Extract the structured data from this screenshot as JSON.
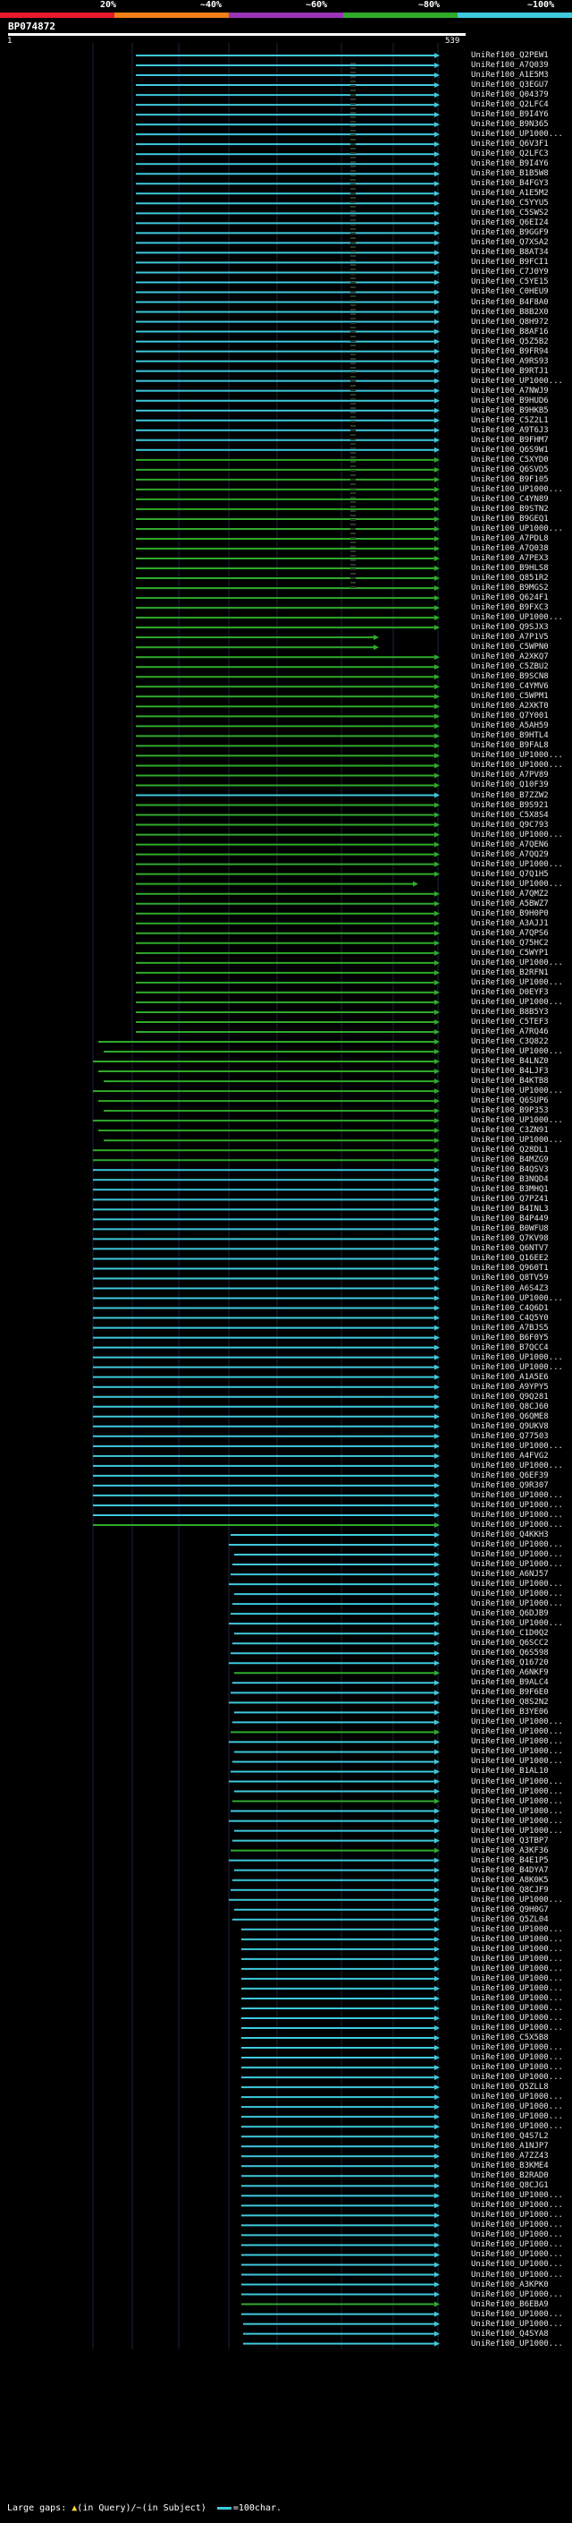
{
  "scale": {
    "ticks": [
      "20%",
      "~40%",
      "~60%",
      "~80%",
      "~100%"
    ],
    "colors": [
      "#e8192c",
      "#f07f18",
      "#9a34b8",
      "#2faa2a",
      "#3ec9dd"
    ]
  },
  "query": {
    "id": "BP074872",
    "start": "1",
    "end": "539"
  },
  "legend": {
    "text": "Large gaps:",
    "query_marker": "▲",
    "query_text": "(in Query)",
    "subject_marker": "/~",
    "subject_text": "(in Subject)",
    "scale_text": "=100char."
  },
  "hit_colors": {
    "high": "#3ec9dd",
    "mid": "#2faa2a"
  },
  "hits": [
    "UniRef100_Q2PEW1",
    "UniRef100_A7Q039",
    "UniRef100_A1E5M3",
    "UniRef100_Q3EGU7",
    "UniRef100_Q04379",
    "UniRef100_Q2LFC4",
    "UniRef100_B9I4Y6",
    "UniRef100_B9N365",
    "UniRef100_UP1000...",
    "UniRef100_Q6V3F1",
    "UniRef100_Q2LFC3",
    "UniRef100_B9I4Y6",
    "UniRef100_B1B5W8",
    "UniRef100_B4FGY3",
    "UniRef100_A1E5M2",
    "UniRef100_C5YYU5",
    "UniRef100_C5SWS2",
    "UniRef100_Q6EI24",
    "UniRef100_B9GGF9",
    "UniRef100_Q7XSA2",
    "UniRef100_B8AT34",
    "UniRef100_B9FCI1",
    "UniRef100_C7J0Y9",
    "UniRef100_C5YE15",
    "UniRef100_C0HEU9",
    "UniRef100_B4F8A0",
    "UniRef100_B8B2X0",
    "UniRef100_Q8H972",
    "UniRef100_B8AF16",
    "UniRef100_Q5Z5B2",
    "UniRef100_B9FR94",
    "UniRef100_A9RS93",
    "UniRef100_B9RTJ1",
    "UniRef100_UP1000...",
    "UniRef100_A7NWJ9",
    "UniRef100_B9HUD6",
    "UniRef100_B9HKB5",
    "UniRef100_C5Z2L1",
    "UniRef100_A9T6J3",
    "UniRef100_B9FHM7",
    "UniRef100_Q6S9W1",
    "UniRef100_C5XYD0",
    "UniRef100_Q6SVD5",
    "UniRef100_B9F105",
    "UniRef100_UP1000...",
    "UniRef100_C4YN89",
    "UniRef100_B9STN2",
    "UniRef100_B9GEQ1",
    "UniRef100_UP1000...",
    "UniRef100_A7PDL8",
    "UniRef100_A7Q038",
    "UniRef100_A7PEX3",
    "UniRef100_B9HLS8",
    "UniRef100_Q851R2",
    "UniRef100_B9MGS2",
    "UniRef100_Q624F1",
    "UniRef100_B9FXC3",
    "UniRef100_UP1000...",
    "UniRef100_Q9SJX3",
    "UniRef100_A7P1V5",
    "UniRef100_C5WPN0",
    "UniRef100_A2XKQ7",
    "UniRef100_C5ZBU2",
    "UniRef100_B9SCN8",
    "UniRef100_C4YMV6",
    "UniRef100_C5WPM1",
    "UniRef100_A2XKT0",
    "UniRef100_Q7Y001",
    "UniRef100_A5AH59",
    "UniRef100_B9HTL4",
    "UniRef100_B9FAL8",
    "UniRef100_UP1000...",
    "UniRef100_UP1000...",
    "UniRef100_A7PV89",
    "UniRef100_Q10F39",
    "UniRef100_B7ZZW2",
    "UniRef100_B9S921",
    "UniRef100_C5X8S4",
    "UniRef100_Q9C793",
    "UniRef100_UP1000...",
    "UniRef100_A7QEN6",
    "UniRef100_A7QQ29",
    "UniRef100_UP1000...",
    "UniRef100_Q7Q1H5",
    "UniRef100_UP1000...",
    "UniRef100_A7QMZ2",
    "UniRef100_A5BWZ7",
    "UniRef100_B9H0P0",
    "UniRef100_A3AJJ1",
    "UniRef100_A7QPS6",
    "UniRef100_Q75HC2",
    "UniRef100_C5WYP1",
    "UniRef100_UP1000...",
    "UniRef100_B2RFN1",
    "UniRef100_UP1000...",
    "UniRef100_D0EYF3",
    "UniRef100_UP1000...",
    "UniRef100_B8B5Y3",
    "UniRef100_C5TEF3",
    "UniRef100_A7RQ46",
    "UniRef100_C3Q822",
    "UniRef100_UP1000...",
    "UniRef100_B4LNZ0",
    "UniRef100_B4LJF3",
    "UniRef100_B4KTB8",
    "UniRef100_UP1000...",
    "UniRef100_Q6SUP6",
    "UniRef100_B9P353",
    "UniRef100_UP1000...",
    "UniRef100_C3ZN91",
    "UniRef100_UP1000...",
    "UniRef100_Q28DL1",
    "UniRef100_B4MZG9",
    "UniRef100_B4QSV3",
    "UniRef100_B3NQD4",
    "UniRef100_B3MHQ1",
    "UniRef100_Q7PZ41",
    "UniRef100_B4INL3",
    "UniRef100_B4P449",
    "UniRef100_B0WFU8",
    "UniRef100_Q7KV98",
    "UniRef100_Q6NTV7",
    "UniRef100_Q16EE2",
    "UniRef100_Q960T1",
    "UniRef100_Q8TV59",
    "UniRef100_A6S4Z3",
    "UniRef100_UP1000...",
    "UniRef100_C4Q6D1",
    "UniRef100_C4Q5Y0",
    "UniRef100_A7BJS5",
    "UniRef100_B6F0Y5",
    "UniRef100_B7QCC4",
    "UniRef100_UP1000...",
    "UniRef100_UP1000...",
    "UniRef100_A1A5E6",
    "UniRef100_A9YPY5",
    "UniRef100_Q9Q281",
    "UniRef100_Q8CJ60",
    "UniRef100_Q6QME8",
    "UniRef100_Q9UKV8",
    "UniRef100_Q77503",
    "UniRef100_UP1000...",
    "UniRef100_A4FVG2",
    "UniRef100_UP1000...",
    "UniRef100_Q6EF39",
    "UniRef100_Q9R307",
    "UniRef100_UP1000...",
    "UniRef100_UP1000...",
    "UniRef100_UP1000...",
    "UniRef100_UP1000...",
    "UniRef100_Q4KKH3",
    "UniRef100_UP1000...",
    "UniRef100_UP1000...",
    "UniRef100_UP1000...",
    "UniRef100_A6NJ57",
    "UniRef100_UP1000...",
    "UniRef100_UP1000...",
    "UniRef100_UP1000...",
    "UniRef100_Q6DJB9",
    "UniRef100_UP1000...",
    "UniRef100_C1D0Q2",
    "UniRef100_Q6SCC2",
    "UniRef100_Q6S598",
    "UniRef100_Q16720",
    "UniRef100_A6NKF9",
    "UniRef100_B9ALC4",
    "UniRef100_B9F6E0",
    "UniRef100_Q8S2N2",
    "UniRef100_B3YE06",
    "UniRef100_UP1000...",
    "UniRef100_UP1000...",
    "UniRef100_UP1000...",
    "UniRef100_UP1000...",
    "UniRef100_UP1000...",
    "UniRef100_B1AL10",
    "UniRef100_UP1000...",
    "UniRef100_UP1000...",
    "UniRef100_UP1000...",
    "UniRef100_UP1000...",
    "UniRef100_UP1000...",
    "UniRef100_UP1000...",
    "UniRef100_Q3TBP7",
    "UniRef100_A3KF36",
    "UniRef100_B4E1P5",
    "UniRef100_B4DYA7",
    "UniRef100_A8K0K5",
    "UniRef100_Q8CJF9",
    "UniRef100_UP1000...",
    "UniRef100_Q9H0G7",
    "UniRef100_Q5ZL04",
    "UniRef100_UP1000...",
    "UniRef100_UP1000...",
    "UniRef100_UP1000...",
    "UniRef100_UP1000...",
    "UniRef100_UP1000...",
    "UniRef100_UP1000...",
    "UniRef100_UP1000...",
    "UniRef100_UP1000...",
    "UniRef100_UP1000...",
    "UniRef100_UP1000...",
    "UniRef100_UP1000...",
    "UniRef100_C5X5B8",
    "UniRef100_UP1000...",
    "UniRef100_UP1000...",
    "UniRef100_UP1000...",
    "UniRef100_UP1000...",
    "UniRef100_Q5ZLL8",
    "UniRef100_UP1000...",
    "UniRef100_UP1000...",
    "UniRef100_UP1000...",
    "UniRef100_UP1000...",
    "UniRef100_Q4S7L2",
    "UniRef100_A1NJP7",
    "UniRef100_A7ZZ43",
    "UniRef100_B3KME4",
    "UniRef100_B2RAD0",
    "UniRef100_Q8CJG1",
    "UniRef100_UP1000...",
    "UniRef100_UP1000...",
    "UniRef100_UP1000...",
    "UniRef100_UP1000...",
    "UniRef100_UP1000...",
    "UniRef100_UP1000...",
    "UniRef100_UP1000...",
    "UniRef100_UP1000...",
    "UniRef100_UP1000...",
    "UniRef100_A3KPK0",
    "UniRef100_UP1000...",
    "UniRef100_B6EBA9",
    "UniRef100_UP1000...",
    "UniRef100_UP1000...",
    "UniRef100_Q4SYA8",
    "UniRef100_UP1000..."
  ]
}
